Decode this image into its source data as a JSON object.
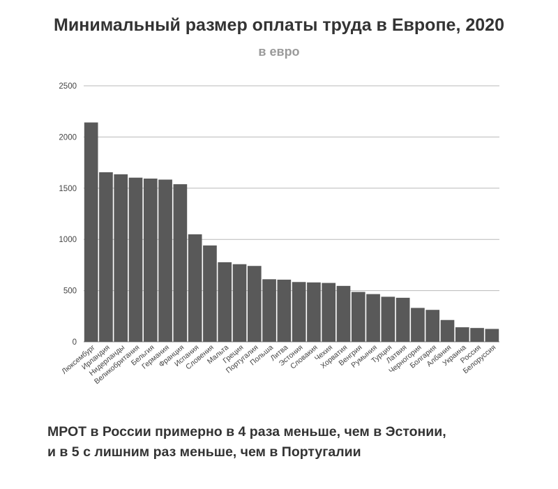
{
  "chart_data": {
    "type": "bar",
    "title": "Минимальный размер оплаты труда в Европе, 2020",
    "subtitle": "в евро",
    "xlabel": "",
    "ylabel": "",
    "ylim": [
      0,
      2500
    ],
    "yticks": [
      0,
      500,
      1000,
      1500,
      2000,
      2500
    ],
    "grid": true,
    "bar_color": "#595959",
    "categories": [
      "Люксембург",
      "Ирландия",
      "Нидерланды",
      "Великобритания",
      "Бельгия",
      "Германия",
      "Франция",
      "Испания",
      "Словения",
      "Мальта",
      "Греция",
      "Португалия",
      "Польша",
      "Литва",
      "Эстония",
      "Словакия",
      "Чехия",
      "Хорватия",
      "Венгрия",
      "Румыния",
      "Турция",
      "Латвия",
      "Черногория",
      "Болгария",
      "Албания",
      "Украина",
      "Россия",
      "Белоруссия"
    ],
    "values": [
      2142,
      1656,
      1636,
      1603,
      1594,
      1584,
      1539,
      1050,
      941,
      777,
      758,
      741,
      611,
      607,
      584,
      580,
      575,
      546,
      487,
      466,
      440,
      430,
      331,
      312,
      213,
      142,
      135,
      126
    ]
  },
  "footnote": {
    "line1": "МРОТ в России примерно в 4 раза меньше, чем в Эстонии,",
    "line2": "и в 5 с лишним раз меньше, чем в Португалии"
  }
}
